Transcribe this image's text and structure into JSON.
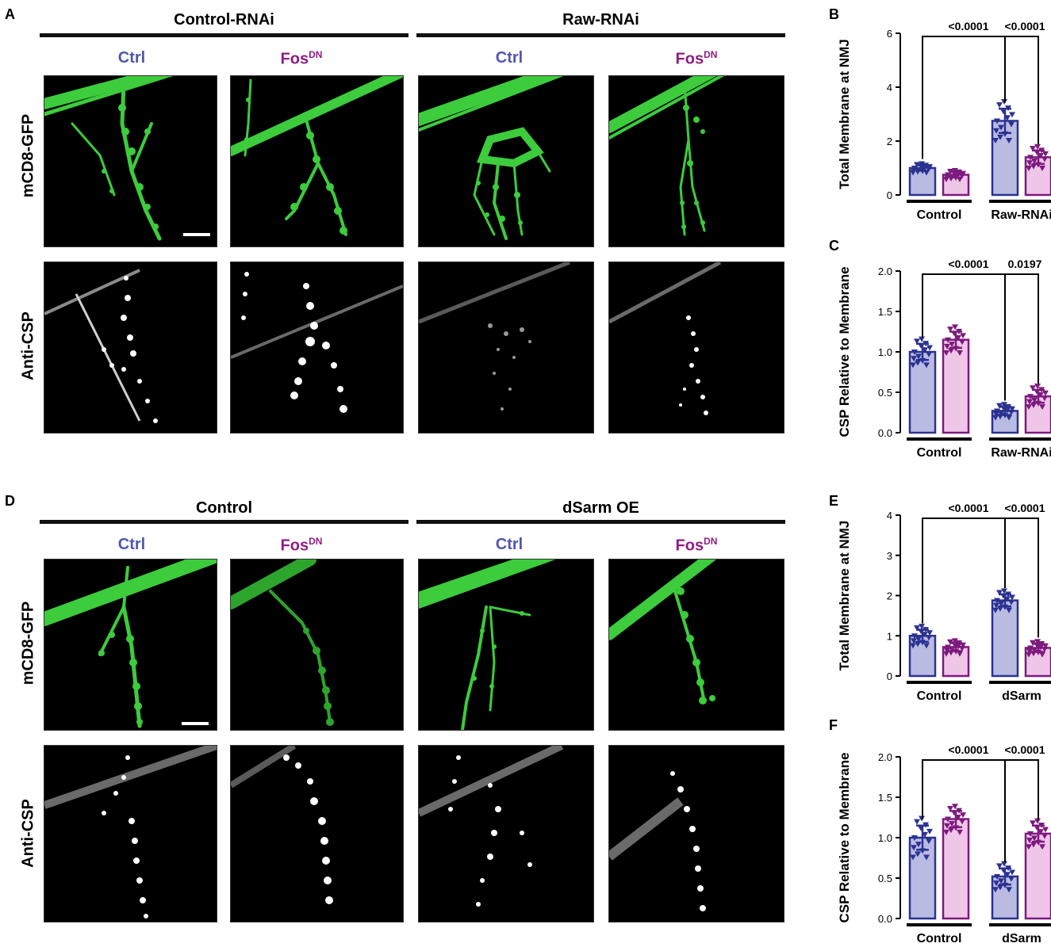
{
  "panels": {
    "A": "A",
    "B": "B",
    "C": "C",
    "D": "D",
    "E": "E",
    "F": "F"
  },
  "top": {
    "group1": "Control-RNAi",
    "group2": "Raw-RNAi",
    "col_ctrl": "Ctrl",
    "col_fos": "Fos",
    "col_fos_sup": "DN",
    "row1": "mCD8-GFP",
    "row2": "Anti-CSP"
  },
  "bottom": {
    "group1": "Control",
    "group2": "dSarm OE",
    "col_ctrl": "Ctrl",
    "col_fos": "Fos",
    "col_fos_sup": "DN",
    "row1": "mCD8-GFP",
    "row2": "Anti-CSP"
  },
  "colors": {
    "ctrl_text": "#5356ad",
    "fos_text": "#8e1c86",
    "ctrl_bar_fill": "#b9bbe3",
    "ctrl_bar_stroke": "#2b3290",
    "fos_bar_fill": "#f0c6e8",
    "fos_bar_stroke": "#7d1a7e",
    "gfp": "#3ccc3c",
    "csp": "#ffffff"
  },
  "chart_data": [
    {
      "id": "B",
      "type": "bar",
      "ylabel": "Total Membrane at NMJ",
      "ylim": [
        0,
        6
      ],
      "yticks": [
        "0",
        "2",
        "4",
        "6"
      ],
      "groups": [
        "Control",
        "Raw-RNAi"
      ],
      "values": [
        1.0,
        0.75,
        2.75,
        1.4
      ],
      "errors": [
        0.1,
        0.1,
        0.45,
        0.25
      ],
      "significance": [
        {
          "from": 0,
          "to": 2,
          "label": "<0.0001"
        },
        {
          "from": 2,
          "to": 3,
          "label": "<0.0001"
        }
      ]
    },
    {
      "id": "C",
      "type": "bar",
      "ylabel": "CSP Relative to Membrane",
      "ylim": [
        0,
        2
      ],
      "yticks": [
        "0.0",
        "0.5",
        "1.0",
        "1.5",
        "2.0"
      ],
      "groups": [
        "Control",
        "Raw-RNAi"
      ],
      "values": [
        1.0,
        1.15,
        0.27,
        0.45
      ],
      "errors": [
        0.1,
        0.1,
        0.05,
        0.08
      ],
      "significance": [
        {
          "from": 0,
          "to": 2,
          "label": "<0.0001"
        },
        {
          "from": 2,
          "to": 3,
          "label": "0.0197"
        }
      ]
    },
    {
      "id": "E",
      "type": "bar",
      "ylabel": "Total Membrane at NMJ",
      "ylim": [
        0,
        4
      ],
      "yticks": [
        "0",
        "1",
        "2",
        "3",
        "4"
      ],
      "groups": [
        "Control",
        "dSarm"
      ],
      "values": [
        1.0,
        0.72,
        1.88,
        0.7
      ],
      "errors": [
        0.15,
        0.1,
        0.15,
        0.1
      ],
      "significance": [
        {
          "from": 0,
          "to": 2,
          "label": "<0.0001"
        },
        {
          "from": 2,
          "to": 3,
          "label": "<0.0001"
        }
      ]
    },
    {
      "id": "F",
      "type": "bar",
      "ylabel": "CSP Relative to Membrane",
      "ylim": [
        0,
        2
      ],
      "yticks": [
        "0.0",
        "0.5",
        "1.0",
        "1.5",
        "2.0"
      ],
      "groups": [
        "Control",
        "dSarm"
      ],
      "values": [
        1.0,
        1.23,
        0.52,
        1.05
      ],
      "errors": [
        0.15,
        0.1,
        0.1,
        0.1
      ],
      "significance": [
        {
          "from": 0,
          "to": 2,
          "label": "<0.0001"
        },
        {
          "from": 2,
          "to": 3,
          "label": "<0.0001"
        }
      ]
    }
  ]
}
